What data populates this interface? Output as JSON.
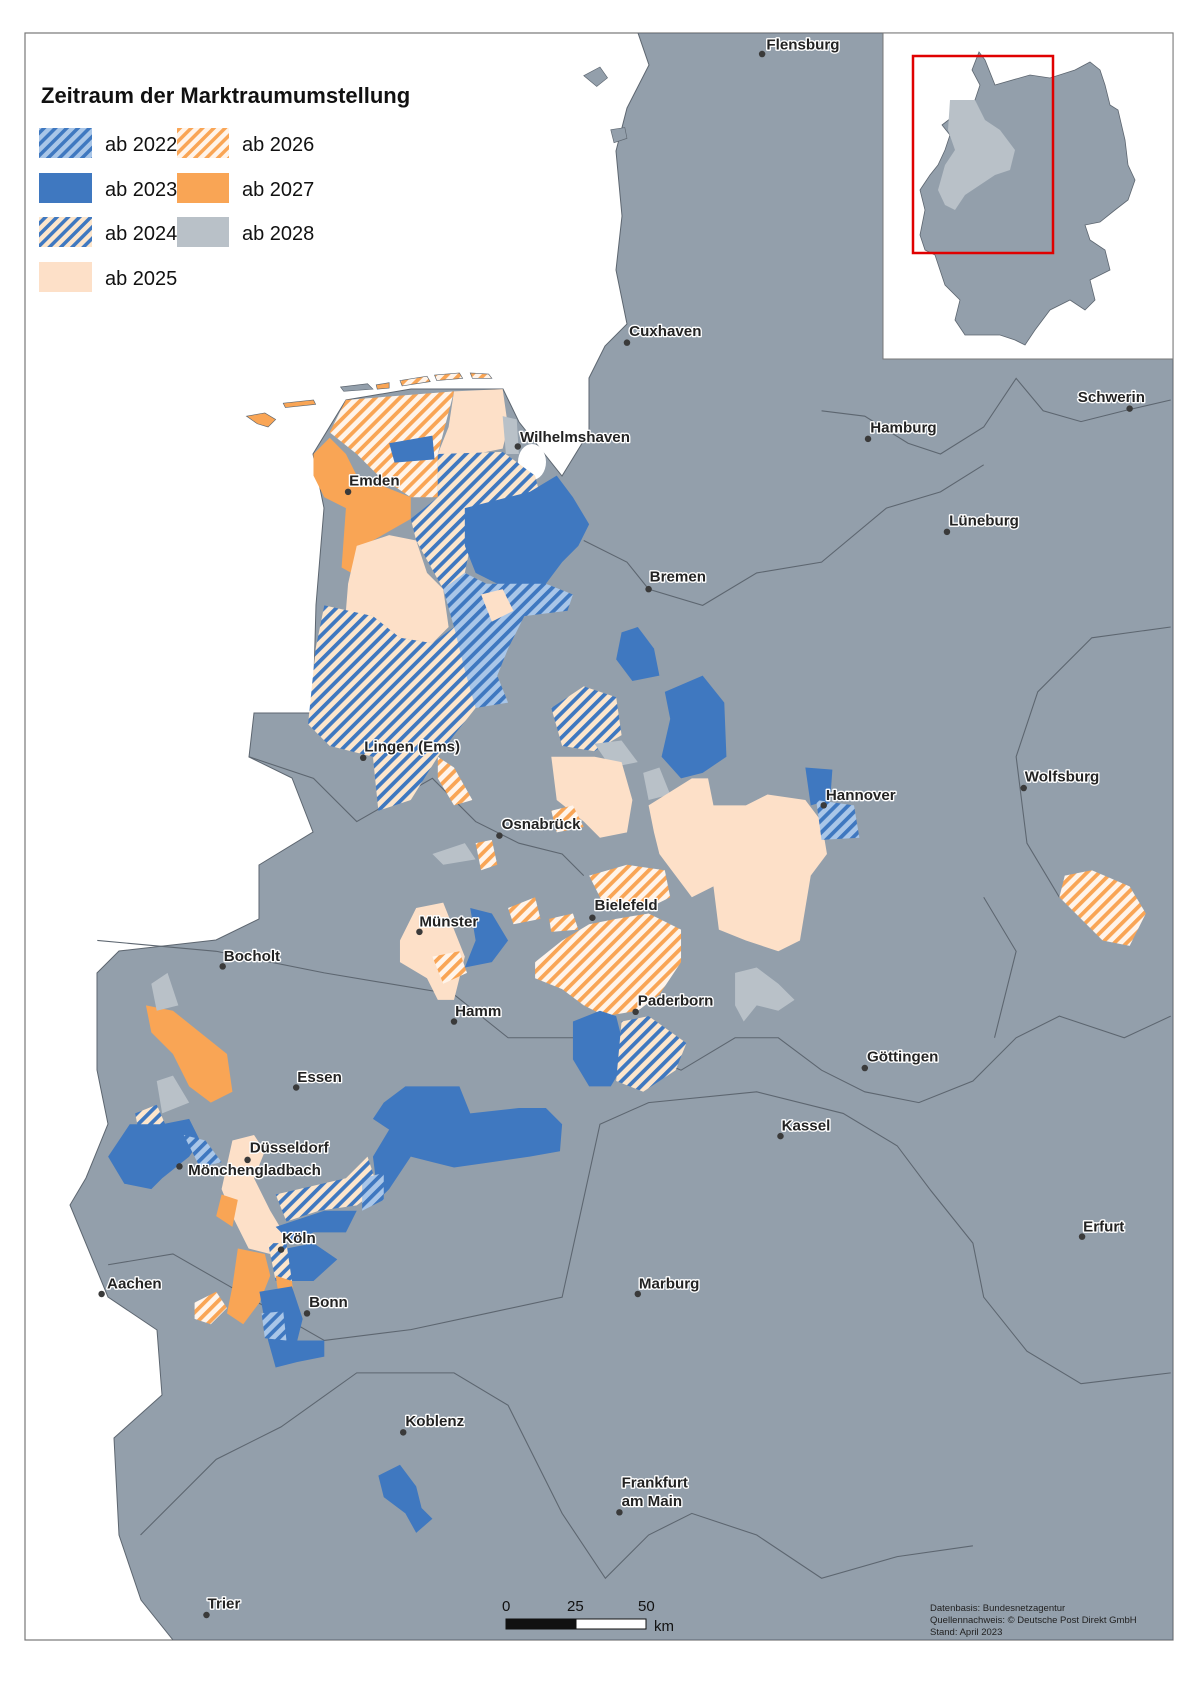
{
  "legend": {
    "title": "Zeitraum der Marktraumumstellung",
    "items": [
      {
        "label": "ab 2022",
        "style": "hatch",
        "base": "#a9c6e8",
        "stripe": "#3f78c0"
      },
      {
        "label": "ab 2023",
        "style": "solid",
        "color": "#3f78c0"
      },
      {
        "label": "ab 2024",
        "style": "hatch",
        "base": "#fde6cc",
        "stripe": "#3f78c0"
      },
      {
        "label": "ab 2025",
        "style": "solid",
        "color": "#fde0c8"
      },
      {
        "label": "ab 2026",
        "style": "hatch",
        "base": "#fff4ea",
        "stripe": "#f9a555"
      },
      {
        "label": "ab 2027",
        "style": "solid",
        "color": "#f9a555"
      },
      {
        "label": "ab 2028",
        "style": "solid",
        "color": "#b9c1c8"
      }
    ]
  },
  "colors": {
    "land": "#939fab",
    "sea": "#ffffff",
    "inset_frame": "#e00000"
  },
  "cities": {
    "flensburg": "Flensburg",
    "cuxhaven": "Cuxhaven",
    "schwerin": "Schwerin",
    "hamburg": "Hamburg",
    "wilhelmshaven": "Wilhelmshaven",
    "emden": "Emden",
    "lueneburg": "Lüneburg",
    "bremen": "Bremen",
    "lingen": "Lingen (Ems)",
    "wolfsburg": "Wolfsburg",
    "hannover": "Hannover",
    "osnabrueck": "Osnabrück",
    "bielefeld": "Bielefeld",
    "muenster": "Münster",
    "bocholt": "Bocholt",
    "paderborn": "Paderborn",
    "hamm": "Hamm",
    "goettingen": "Göttingen",
    "essen": "Essen",
    "kassel": "Kassel",
    "duesseldorf": "Düsseldorf",
    "moenchengladbach": "Mönchengladbach",
    "erfurt": "Erfurt",
    "koeln": "Köln",
    "aachen": "Aachen",
    "marburg": "Marburg",
    "bonn": "Bonn",
    "koblenz": "Koblenz",
    "frankfurt_1": "Frankfurt",
    "frankfurt_2": "am Main",
    "trier": "Trier"
  },
  "scale_bar": {
    "ticks": [
      "0",
      "25",
      "50"
    ],
    "unit": "km"
  },
  "source": {
    "line1": "Datenbasis: Bundesnetzagentur",
    "line2": "Quellennachweis: © Deutsche Post Direkt GmbH",
    "line3": "Stand: April 2023"
  }
}
